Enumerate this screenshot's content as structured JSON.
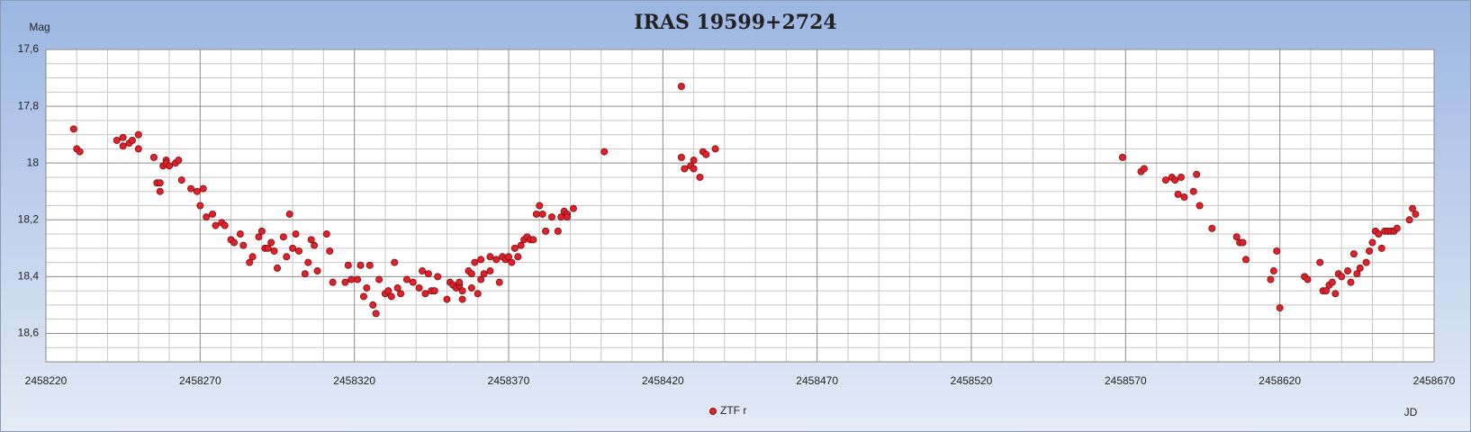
{
  "chart_data": {
    "type": "scatter",
    "title": "IRAS 19599+2724",
    "y_label": "Mag",
    "x_label": "JD",
    "xlim": [
      2458220,
      2458670
    ],
    "xticks": [
      2458220,
      2458270,
      2458320,
      2458370,
      2458420,
      2458470,
      2458520,
      2458570,
      2458620,
      2458670
    ],
    "xminorticks": [
      2458230,
      2458240,
      2458250,
      2458260,
      2458280,
      2458290,
      2458300,
      2458310,
      2458330,
      2458340,
      2458350,
      2458360,
      2458380,
      2458390,
      2458400,
      2458410,
      2458430,
      2458440,
      2458450,
      2458460,
      2458480,
      2458490,
      2458500,
      2458510,
      2458530,
      2458540,
      2458550,
      2458560,
      2458580,
      2458590,
      2458600,
      2458610,
      2458630,
      2458640,
      2458650,
      2458660
    ],
    "ylim": [
      18.7,
      17.6
    ],
    "y_inverted": true,
    "yticks": [
      {
        "value": 17.6,
        "label": "17,6"
      },
      {
        "value": 17.8,
        "label": "17,8"
      },
      18,
      {
        "value": 18.2,
        "label": "18,2"
      },
      {
        "value": 18.4,
        "label": "18,4"
      },
      {
        "value": 18.6,
        "label": "18,6"
      }
    ],
    "yminorticks": [
      17.65,
      17.7,
      17.75,
      17.85,
      17.9,
      17.95,
      18.05,
      18.1,
      18.15,
      18.25,
      18.3,
      18.35,
      18.45,
      18.5,
      18.55,
      18.65,
      18.7
    ],
    "grid": true,
    "legend": "bottom",
    "series": [
      {
        "name": "ZTF r",
        "color": "#e0202a",
        "x": [
          2458229,
          2458230,
          2458231,
          2458243,
          2458245,
          2458245,
          2458247,
          2458248,
          2458250,
          2458250,
          2458255,
          2458256,
          2458257,
          2458257,
          2458258,
          2458259,
          2458259,
          2458260,
          2458262,
          2458263,
          2458264,
          2458267,
          2458269,
          2458271,
          2458270,
          2458272,
          2458274,
          2458275,
          2458277,
          2458278,
          2458280,
          2458281,
          2458283,
          2458284,
          2458286,
          2458287,
          2458289,
          2458290,
          2458291,
          2458292,
          2458293,
          2458294,
          2458295,
          2458297,
          2458298,
          2458299,
          2458300,
          2458301,
          2458302,
          2458304,
          2458305,
          2458306,
          2458307,
          2458308,
          2458311,
          2458312,
          2458313,
          2458317,
          2458318,
          2458319,
          2458321,
          2458322,
          2458323,
          2458324,
          2458325,
          2458326,
          2458327,
          2458328,
          2458330,
          2458331,
          2458332,
          2458333,
          2458334,
          2458335,
          2458337,
          2458339,
          2458341,
          2458342,
          2458343,
          2458344,
          2458345,
          2458346,
          2458347,
          2458350,
          2458351,
          2458352,
          2458353,
          2458354,
          2458354,
          2458355,
          2458355,
          2458357,
          2458358,
          2458358,
          2458359,
          2458360,
          2458361,
          2458361,
          2458362,
          2458364,
          2458364,
          2458366,
          2458367,
          2458368,
          2458369,
          2458370,
          2458371,
          2458372,
          2458373,
          2458374,
          2458375,
          2458376,
          2458377,
          2458378,
          2458379,
          2458380,
          2458381,
          2458382,
          2458384,
          2458386,
          2458387,
          2458388,
          2458389,
          2458389,
          2458391,
          2458401,
          2458426,
          2458426,
          2458427,
          2458429,
          2458430,
          2458430,
          2458432,
          2458433,
          2458434,
          2458437,
          2458569,
          2458575,
          2458576,
          2458583,
          2458585,
          2458586,
          2458587,
          2458588,
          2458589,
          2458592,
          2458593,
          2458594,
          2458598,
          2458606,
          2458607,
          2458608,
          2458609,
          2458617,
          2458618,
          2458619,
          2458620,
          2458628,
          2458629,
          2458633,
          2458634,
          2458635,
          2458636,
          2458637,
          2458638,
          2458639,
          2458640,
          2458642,
          2458643,
          2458644,
          2458645,
          2458646,
          2458648,
          2458649,
          2458650,
          2458651,
          2458652,
          2458653,
          2458654,
          2458655,
          2458656,
          2458657,
          2458658,
          2458662,
          2458663,
          2458664
        ],
        "values": [
          17.88,
          17.95,
          17.96,
          17.92,
          17.91,
          17.94,
          17.93,
          17.92,
          17.9,
          17.95,
          17.98,
          18.07,
          18.07,
          18.1,
          18.01,
          17.99,
          18.0,
          18.01,
          18.0,
          17.99,
          18.06,
          18.09,
          18.1,
          18.09,
          18.15,
          18.19,
          18.18,
          18.22,
          18.21,
          18.22,
          18.27,
          18.28,
          18.25,
          18.29,
          18.35,
          18.33,
          18.26,
          18.24,
          18.3,
          18.3,
          18.28,
          18.31,
          18.37,
          18.26,
          18.33,
          18.18,
          18.3,
          18.25,
          18.31,
          18.39,
          18.35,
          18.27,
          18.29,
          18.38,
          18.25,
          18.31,
          18.42,
          18.42,
          18.36,
          18.41,
          18.41,
          18.36,
          18.47,
          18.44,
          18.36,
          18.5,
          18.53,
          18.41,
          18.46,
          18.45,
          18.47,
          18.35,
          18.44,
          18.46,
          18.41,
          18.42,
          18.44,
          18.38,
          18.46,
          18.39,
          18.45,
          18.45,
          18.4,
          18.48,
          18.42,
          18.43,
          18.44,
          18.43,
          18.42,
          18.48,
          18.45,
          18.38,
          18.44,
          18.39,
          18.35,
          18.46,
          18.41,
          18.34,
          18.39,
          18.33,
          18.38,
          18.34,
          18.42,
          18.33,
          18.34,
          18.33,
          18.35,
          18.3,
          18.33,
          18.29,
          18.27,
          18.26,
          18.27,
          18.27,
          18.18,
          18.15,
          18.18,
          18.24,
          18.19,
          18.24,
          18.19,
          18.17,
          18.18,
          18.19,
          18.16,
          17.96,
          17.98,
          17.73,
          18.02,
          18.01,
          18.02,
          17.99,
          18.05,
          17.96,
          17.97,
          17.95,
          17.98,
          18.03,
          18.02,
          18.06,
          18.05,
          18.06,
          18.11,
          18.05,
          18.12,
          18.1,
          18.04,
          18.15,
          18.23,
          18.26,
          18.28,
          18.28,
          18.34,
          18.41,
          18.38,
          18.31,
          18.51,
          18.4,
          18.41,
          18.35,
          18.45,
          18.45,
          18.43,
          18.42,
          18.46,
          18.39,
          18.4,
          18.38,
          18.42,
          18.32,
          18.39,
          18.37,
          18.35,
          18.31,
          18.28,
          18.24,
          18.25,
          18.3,
          18.24,
          18.24,
          18.24,
          18.24,
          18.23,
          18.2,
          18.16,
          18.18
        ]
      }
    ]
  }
}
